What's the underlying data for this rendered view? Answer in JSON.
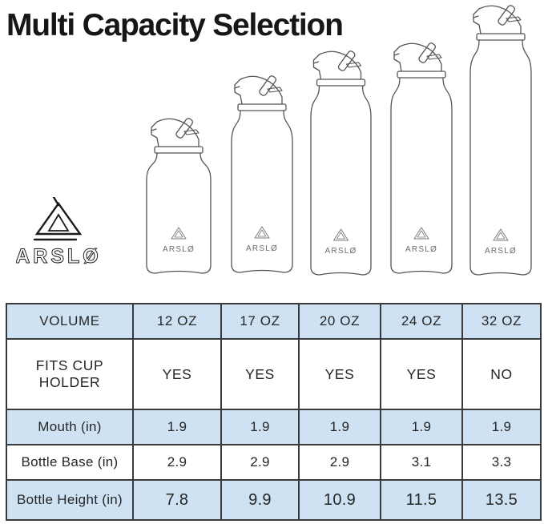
{
  "title": "Multi Capacity Selection",
  "brand": {
    "name": "ARSLØ"
  },
  "bottles": [
    {
      "volume": "12 OZ"
    },
    {
      "volume": "17 OZ"
    },
    {
      "volume": "20 OZ"
    },
    {
      "volume": "24 OZ"
    },
    {
      "volume": "32 OZ"
    }
  ],
  "table": {
    "rows": [
      {
        "cells": [
          "VOLUME",
          "12 OZ",
          "17 OZ",
          "20 OZ",
          "24 OZ",
          "32 OZ"
        ]
      },
      {
        "cells": [
          "FITS CUP HOLDER",
          "YES",
          "YES",
          "YES",
          "YES",
          "NO"
        ]
      },
      {
        "cells": [
          "Mouth (in)",
          "1.9",
          "1.9",
          "1.9",
          "1.9",
          "1.9"
        ]
      },
      {
        "cells": [
          "Bottle Base (in)",
          "2.9",
          "2.9",
          "2.9",
          "3.1",
          "3.3"
        ]
      },
      {
        "cells": [
          "Bottle Height (in)",
          "7.8",
          "9.9",
          "10.9",
          "11.5",
          "13.5"
        ]
      }
    ]
  },
  "chart_data": {
    "type": "table",
    "title": "Multi Capacity Selection",
    "columns": [
      "VOLUME",
      "12 OZ",
      "17 OZ",
      "20 OZ",
      "24 OZ",
      "32 OZ"
    ],
    "rows": [
      {
        "label": "FITS CUP HOLDER",
        "values": [
          "YES",
          "YES",
          "YES",
          "YES",
          "NO"
        ]
      },
      {
        "label": "Mouth (in)",
        "values": [
          1.9,
          1.9,
          1.9,
          1.9,
          1.9
        ]
      },
      {
        "label": "Bottle Base (in)",
        "values": [
          2.9,
          2.9,
          2.9,
          3.1,
          3.3
        ]
      },
      {
        "label": "Bottle Height (in)",
        "values": [
          7.8,
          9.9,
          10.9,
          11.5,
          13.5
        ]
      }
    ],
    "notes": "Row colors alternate light blue and white; five bottle illustrations above table increase in height with capacity"
  },
  "colors": {
    "table_blue": "#cfe2f4",
    "table_border": "#3a3a3a",
    "ink": "#161616",
    "bottle_line": "#555555",
    "logo_ink": "#1c1c1c"
  }
}
